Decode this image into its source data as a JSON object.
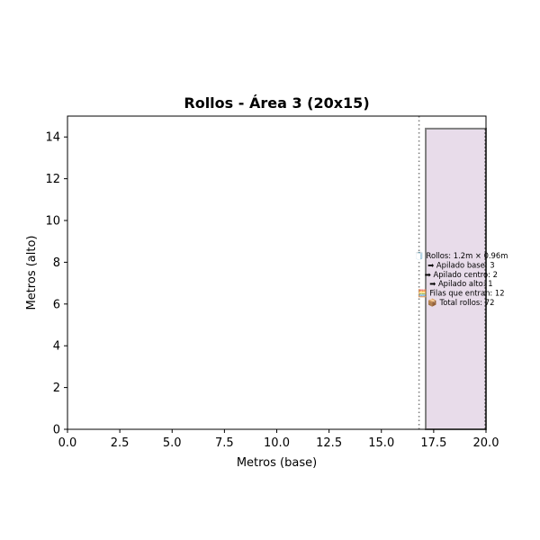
{
  "chart_data": {
    "type": "bar",
    "title": "Rollos - Área 3 (20x15)",
    "xlabel": "Metros (base)",
    "ylabel": "Metros (alto)",
    "xlim": [
      0,
      20
    ],
    "ylim": [
      0,
      15
    ],
    "x_ticks": [
      "0.0",
      "2.5",
      "5.0",
      "7.5",
      "10.0",
      "12.5",
      "15.0",
      "17.5",
      "20.0"
    ],
    "y_ticks": [
      "0",
      "2",
      "4",
      "6",
      "8",
      "10",
      "12",
      "14"
    ],
    "grid": false,
    "area": {
      "width": 20,
      "height": 15
    },
    "rolls_block": {
      "x_start": 17.12,
      "x_end": 20.0,
      "height": 14.4,
      "fill_color": "#e8dcea",
      "edge_color": "#808080"
    },
    "separator_line": {
      "x": 16.8,
      "style": "dotted",
      "color": "#808080"
    },
    "annotation": [
      "🧻 Rollos: 1.2m × 0.96m",
      "➡ Apilado base: 3",
      "➡ Apilado centro: 2",
      "➡ Apilado alto: 1",
      "🧮 Filas que entran: 12",
      "📦 Total rollos: 72"
    ],
    "annotation_center": {
      "x": 18.9,
      "y": 7.2
    }
  }
}
